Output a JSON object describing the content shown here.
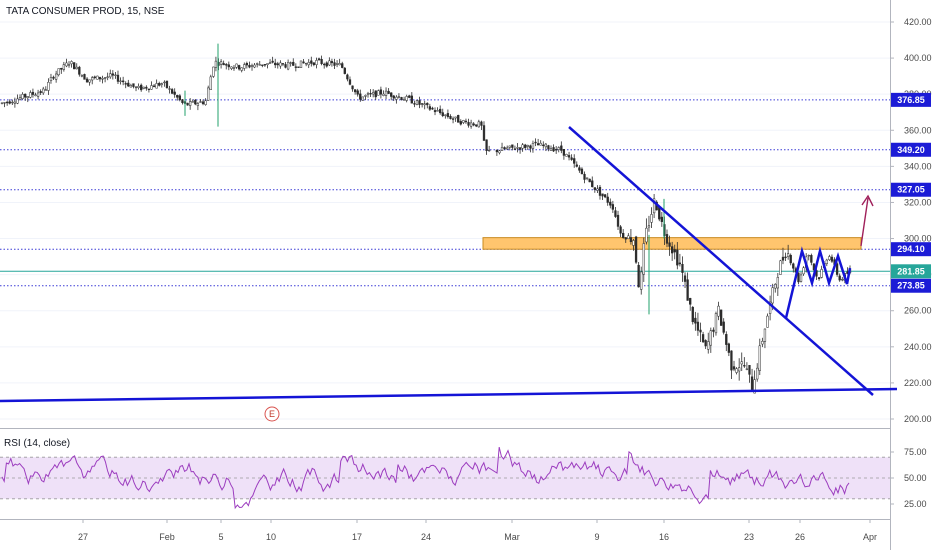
{
  "header": {
    "symbol": "TATA CONSUMER PROD",
    "interval": "15",
    "exchange": "NSE",
    "separator": ", "
  },
  "rsi_label": "RSI (14, close)",
  "colors": {
    "up": "#26a69a",
    "down": "#ef5350",
    "candle": "#2b2b2b",
    "trendline": "#1414d6",
    "level_line": "#3b3bd6",
    "zone_fill": "#ffc56e",
    "zone_stroke": "#c98a1e",
    "current_price": "#26a69a",
    "arrow": "#a0205a",
    "rsi_line": "#9c3dbf",
    "rsi_band": "#e9d7f5"
  },
  "chart_data": [
    {
      "type": "candlestick",
      "title": "TATA CONSUMER PROD, 15, NSE",
      "y_axis": {
        "ylim": [
          195,
          425
        ],
        "ticks": [
          "420.00",
          "400.00",
          "380.00",
          "360.00",
          "340.00",
          "320.00",
          "300.00",
          "280.00",
          "260.00",
          "240.00",
          "220.00",
          "200.00"
        ]
      },
      "x_axis": {
        "tick_labels": [
          "27",
          "Feb",
          "5",
          "10",
          "17",
          "24",
          "Mar",
          "9",
          "16",
          "23",
          "26",
          "Apr"
        ]
      },
      "price_path": [
        {
          "t": 0.0,
          "p": 375
        },
        {
          "t": 0.05,
          "p": 382
        },
        {
          "t": 0.06,
          "p": 390
        },
        {
          "t": 0.08,
          "p": 398
        },
        {
          "t": 0.1,
          "p": 388
        },
        {
          "t": 0.13,
          "p": 390
        },
        {
          "t": 0.16,
          "p": 383
        },
        {
          "t": 0.19,
          "p": 386
        },
        {
          "t": 0.215,
          "p": 374
        },
        {
          "t": 0.24,
          "p": 376
        },
        {
          "t": 0.25,
          "p": 398
        },
        {
          "t": 0.28,
          "p": 395
        },
        {
          "t": 0.31,
          "p": 397
        },
        {
          "t": 0.34,
          "p": 396
        },
        {
          "t": 0.37,
          "p": 398
        },
        {
          "t": 0.4,
          "p": 396
        },
        {
          "t": 0.42,
          "p": 378
        },
        {
          "t": 0.45,
          "p": 381
        },
        {
          "t": 0.48,
          "p": 377
        },
        {
          "t": 0.51,
          "p": 371
        },
        {
          "t": 0.54,
          "p": 365
        },
        {
          "t": 0.565,
          "p": 363
        },
        {
          "t": 0.57,
          "p": 348
        },
        {
          "t": 0.6,
          "p": 350
        },
        {
          "t": 0.63,
          "p": 352
        },
        {
          "t": 0.66,
          "p": 349
        },
        {
          "t": 0.68,
          "p": 338
        },
        {
          "t": 0.695,
          "p": 330
        },
        {
          "t": 0.72,
          "p": 318
        },
        {
          "t": 0.73,
          "p": 302
        },
        {
          "t": 0.745,
          "p": 300
        },
        {
          "t": 0.752,
          "p": 270
        },
        {
          "t": 0.758,
          "p": 300
        },
        {
          "t": 0.77,
          "p": 322
        },
        {
          "t": 0.78,
          "p": 305
        },
        {
          "t": 0.8,
          "p": 285
        },
        {
          "t": 0.815,
          "p": 255
        },
        {
          "t": 0.83,
          "p": 238
        },
        {
          "t": 0.845,
          "p": 260
        },
        {
          "t": 0.86,
          "p": 230
        },
        {
          "t": 0.875,
          "p": 230
        },
        {
          "t": 0.885,
          "p": 218
        },
        {
          "t": 0.9,
          "p": 252
        },
        {
          "t": 0.915,
          "p": 282
        },
        {
          "t": 0.925,
          "p": 294
        },
        {
          "t": 0.94,
          "p": 276
        },
        {
          "t": 0.95,
          "p": 293
        },
        {
          "t": 0.962,
          "p": 277
        },
        {
          "t": 0.975,
          "p": 292
        },
        {
          "t": 0.988,
          "p": 277
        },
        {
          "t": 1.0,
          "p": 282
        }
      ],
      "horizontal_levels": [
        {
          "label": "376.85",
          "value": 376.85,
          "style": "dotted"
        },
        {
          "label": "349.20",
          "value": 349.2,
          "style": "dotted"
        },
        {
          "label": "327.05",
          "value": 327.05,
          "style": "dotted"
        },
        {
          "label": "294.10",
          "value": 294.1,
          "style": "dotted"
        },
        {
          "label": "273.85",
          "value": 273.85,
          "style": "dotted"
        },
        {
          "label": "281.85",
          "value": 281.85,
          "style": "current"
        }
      ],
      "zone": {
        "from": 294.1,
        "to": 300.5
      },
      "annotations": {
        "earnings_marker": "E"
      },
      "last_price": "281.85"
    },
    {
      "type": "line",
      "title": "RSI (14, close)",
      "y_axis": {
        "ylim": [
          15,
          85
        ],
        "ticks": [
          "75.00",
          "50.00",
          "25.00"
        ]
      },
      "band": [
        30,
        70
      ],
      "shape": "oscillating between roughly 20 and 80, mostly 30–70"
    }
  ]
}
